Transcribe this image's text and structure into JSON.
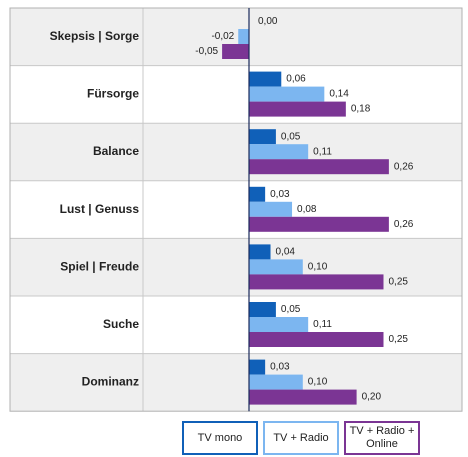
{
  "chart_data": {
    "type": "bar",
    "orientation": "horizontal",
    "categories": [
      "Skepsis | Sorge",
      "Fürsorge",
      "Balance",
      "Lust | Genuss",
      "Spiel | Freude",
      "Suche",
      "Dominanz"
    ],
    "series": [
      {
        "name": "TV mono",
        "color": "#1060b8",
        "values": [
          0.0,
          0.06,
          0.05,
          0.03,
          0.04,
          0.05,
          0.03
        ],
        "value_labels": [
          "0,00",
          "0,06",
          "0,05",
          "0,03",
          "0,04",
          "0,05",
          "0,03"
        ]
      },
      {
        "name": "TV + Radio",
        "color": "#7cb6f0",
        "values": [
          -0.02,
          0.14,
          0.11,
          0.08,
          0.1,
          0.11,
          0.1
        ],
        "value_labels": [
          "-0,02",
          "0,14",
          "0,11",
          "0,08",
          "0,10",
          "0,11",
          "0,10"
        ]
      },
      {
        "name": "TV + Radio + Online",
        "color": "#7b3594",
        "values": [
          -0.05,
          0.18,
          0.26,
          0.26,
          0.25,
          0.25,
          0.2
        ],
        "value_labels": [
          "-0,05",
          "0,18",
          "0,26",
          "0,26",
          "0,25",
          "0,25",
          "0,20"
        ]
      }
    ]
  }
}
